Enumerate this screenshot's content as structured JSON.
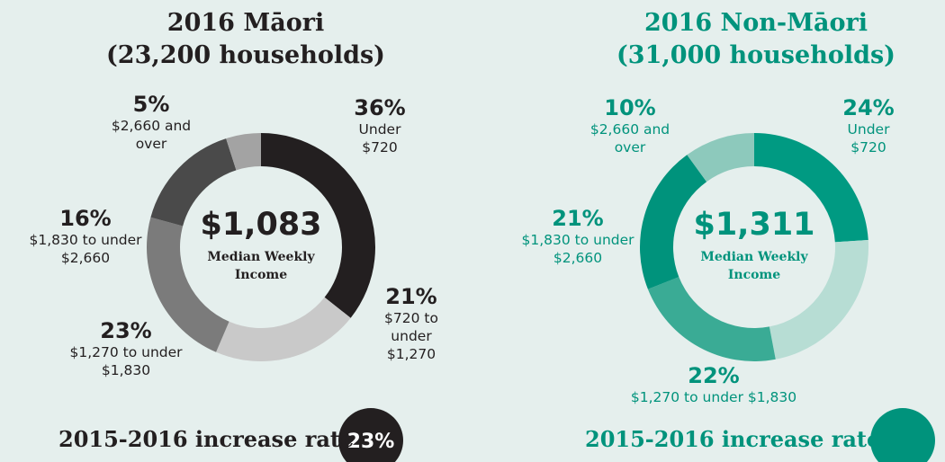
{
  "chart_data": [
    {
      "type": "pie",
      "title": "2016 Māori",
      "subtitle": "(23,200 households)",
      "center_value": "$1,083",
      "center_label": "Median Weekly Income",
      "categories": [
        "Under $720",
        "$720 to under $1,270",
        "$1,270 to under $1,830",
        "$1,830 to under $2,660",
        "$2,660 and over"
      ],
      "values": [
        36,
        21,
        23,
        16,
        5
      ],
      "value_labels": [
        "36%",
        "21%",
        "23%",
        "16%",
        "5%"
      ],
      "colors": [
        "#231f20",
        "#c9c9c9",
        "#7b7b7b",
        "#4a4a4a",
        "#a3a3a3"
      ],
      "label_color": "#231f20",
      "increase_label": "2015-2016 increase rate",
      "increase_value": "23%"
    },
    {
      "type": "pie",
      "title": "2016 Non-Māori",
      "subtitle": "(31,000 households)",
      "center_value": "$1,311",
      "center_label": "Median Weekly Income",
      "categories": [
        "Under $720",
        null,
        "$1,270 to under $1,830",
        "$1,830 to under $2,660",
        "$2,660 and over"
      ],
      "values": [
        24,
        23,
        22,
        21,
        10
      ],
      "value_labels": [
        "24%",
        null,
        "22%",
        "21%",
        "10%"
      ],
      "colors": [
        "#009a82",
        "#b7ddd4",
        "#3aab95",
        "#00937c",
        "#8dc9bc"
      ],
      "label_color": "#00937c",
      "increase_label": "2015-2016 increase rate"
    }
  ]
}
